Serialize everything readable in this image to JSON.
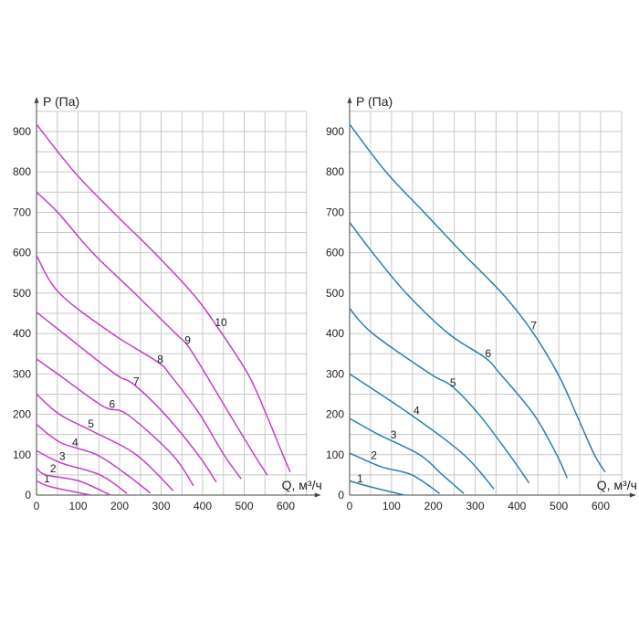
{
  "chart_data": [
    {
      "type": "line",
      "ylabel": "P (Па)",
      "xlabel": "Q, м³/ч",
      "xlim": [
        0,
        650
      ],
      "ylim": [
        0,
        950
      ],
      "x_ticks": [
        0,
        100,
        200,
        300,
        400,
        500,
        600
      ],
      "y_ticks": [
        0,
        100,
        200,
        300,
        400,
        500,
        600,
        700,
        800,
        900
      ],
      "grid": true,
      "grid_step": [
        50,
        50
      ],
      "color": "#c23fc9",
      "series": [
        {
          "name": "1",
          "points": [
            [
              0,
              35
            ],
            [
              36,
              20
            ],
            [
              131,
              0
            ]
          ],
          "label_at": [
            25,
            41
          ]
        },
        {
          "name": "2",
          "points": [
            [
              0,
              67
            ],
            [
              22,
              50
            ],
            [
              102,
              35
            ],
            [
              178,
              0
            ]
          ],
          "label_at": [
            40,
            66
          ]
        },
        {
          "name": "3",
          "points": [
            [
              0,
              110
            ],
            [
              58,
              80
            ],
            [
              153,
              50
            ],
            [
              218,
              4
            ]
          ],
          "label_at": [
            62,
            96
          ]
        },
        {
          "name": "4",
          "points": [
            [
              0,
              175
            ],
            [
              58,
              130
            ],
            [
              145,
              100
            ],
            [
              218,
              50
            ],
            [
              274,
              5
            ]
          ],
          "label_at": [
            93,
            130
          ]
        },
        {
          "name": "5",
          "points": [
            [
              0,
              250
            ],
            [
              55,
              200
            ],
            [
              131,
              160
            ],
            [
              240,
              100
            ],
            [
              329,
              11
            ]
          ],
          "label_at": [
            131,
            176
          ]
        },
        {
          "name": "6",
          "points": [
            [
              0,
              337
            ],
            [
              51,
              300
            ],
            [
              160,
              220
            ],
            [
              218,
              200
            ],
            [
              327,
              100
            ],
            [
              378,
              23
            ]
          ],
          "label_at": [
            182,
            225
          ]
        },
        {
          "name": "7",
          "points": [
            [
              0,
              453
            ],
            [
              65,
              400
            ],
            [
              189,
              300
            ],
            [
              233,
              275
            ],
            [
              309,
              200
            ],
            [
              389,
              100
            ],
            [
              433,
              32
            ]
          ],
          "label_at": [
            240,
            282
          ]
        },
        {
          "name": "8",
          "points": [
            [
              0,
              593
            ],
            [
              55,
              500
            ],
            [
              182,
              400
            ],
            [
              291,
              330
            ],
            [
              320,
              300
            ],
            [
              393,
              200
            ],
            [
              451,
              100
            ],
            [
              493,
              40
            ]
          ],
          "label_at": [
            298,
            336
          ]
        },
        {
          "name": "9",
          "points": [
            [
              0,
              750
            ],
            [
              51,
              700
            ],
            [
              135,
              600
            ],
            [
              236,
              500
            ],
            [
              335,
              400
            ],
            [
              364,
              370
            ],
            [
              407,
              300
            ],
            [
              465,
              200
            ],
            [
              524,
              100
            ],
            [
              556,
              49
            ]
          ],
          "label_at": [
            364,
            383
          ]
        },
        {
          "name": "10",
          "points": [
            [
              0,
              918
            ],
            [
              91,
              800
            ],
            [
              185,
              700
            ],
            [
              284,
              600
            ],
            [
              375,
              500
            ],
            [
              433,
              420
            ],
            [
              509,
              300
            ],
            [
              553,
              200
            ],
            [
              593,
              100
            ],
            [
              611,
              57
            ]
          ],
          "label_at": [
            444,
            427
          ]
        }
      ]
    },
    {
      "type": "line",
      "ylabel": "P (Па)",
      "xlabel": "Q, м³/ч",
      "xlim": [
        0,
        650
      ],
      "ylim": [
        0,
        950
      ],
      "x_ticks": [
        0,
        100,
        200,
        300,
        400,
        500,
        600
      ],
      "y_ticks": [
        0,
        100,
        200,
        300,
        400,
        500,
        600,
        700,
        800,
        900
      ],
      "grid": true,
      "grid_step": [
        50,
        50
      ],
      "color": "#2a7fae",
      "series": [
        {
          "name": "1",
          "points": [
            [
              0,
              35
            ],
            [
              51,
              20
            ],
            [
              131,
              0
            ]
          ],
          "label_at": [
            25,
            41
          ]
        },
        {
          "name": "2",
          "points": [
            [
              0,
              104
            ],
            [
              76,
              70
            ],
            [
              149,
              50
            ],
            [
              215,
              4
            ]
          ],
          "label_at": [
            58,
            98
          ]
        },
        {
          "name": "3",
          "points": [
            [
              0,
              190
            ],
            [
              69,
              150
            ],
            [
              167,
              100
            ],
            [
              222,
              50
            ],
            [
              273,
              4
            ]
          ],
          "label_at": [
            105,
            149
          ]
        },
        {
          "name": "4",
          "points": [
            [
              0,
              300
            ],
            [
              145,
              200
            ],
            [
              273,
              100
            ],
            [
              345,
              15
            ]
          ],
          "label_at": [
            160,
            209
          ]
        },
        {
          "name": "5",
          "points": [
            [
              0,
              462
            ],
            [
              55,
              400
            ],
            [
              193,
              300
            ],
            [
              244,
              270
            ],
            [
              309,
              200
            ],
            [
              382,
              100
            ],
            [
              429,
              30
            ]
          ],
          "label_at": [
            247,
            278
          ]
        },
        {
          "name": "6",
          "points": [
            [
              0,
              675
            ],
            [
              55,
              600
            ],
            [
              135,
              500
            ],
            [
              236,
              400
            ],
            [
              324,
              340
            ],
            [
              360,
              300
            ],
            [
              440,
              200
            ],
            [
              495,
              100
            ],
            [
              520,
              42
            ]
          ],
          "label_at": [
            331,
            350
          ]
        },
        {
          "name": "7",
          "points": [
            [
              0,
              918
            ],
            [
              87,
              800
            ],
            [
              178,
              700
            ],
            [
              269,
              600
            ],
            [
              364,
              500
            ],
            [
              433,
              410
            ],
            [
              498,
              300
            ],
            [
              542,
              200
            ],
            [
              585,
              100
            ],
            [
              611,
              57
            ]
          ],
          "label_at": [
            440,
            419
          ]
        }
      ]
    }
  ]
}
